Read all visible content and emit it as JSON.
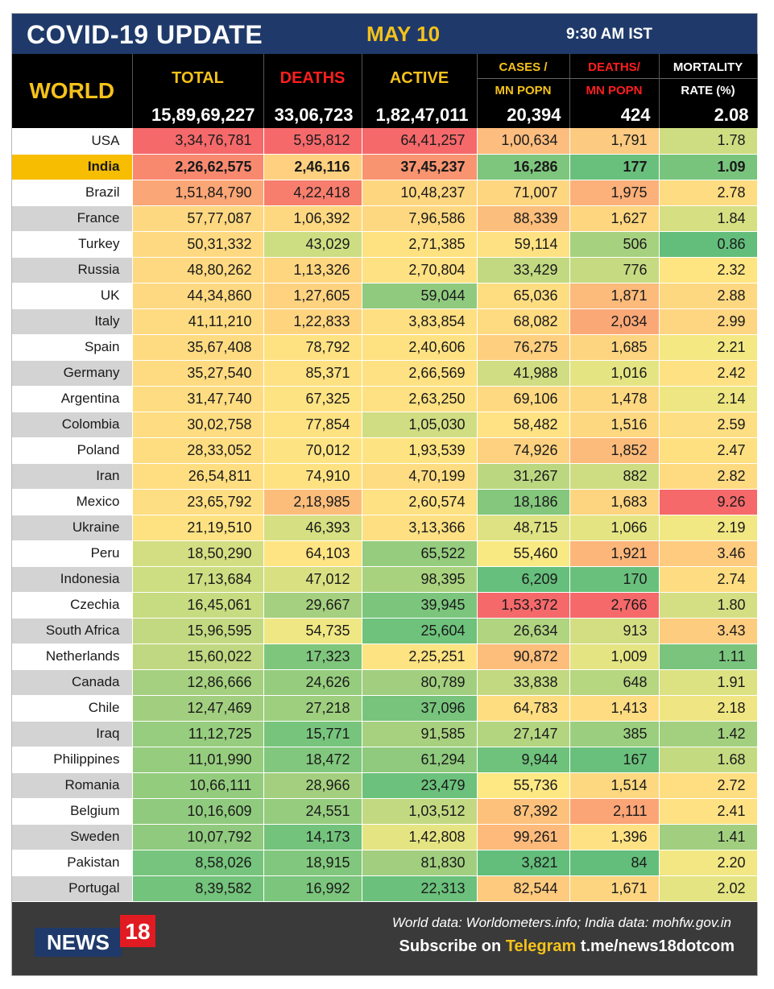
{
  "header": {
    "title": "COVID-19 UPDATE",
    "date": "MAY 10",
    "time": "9:30 AM IST"
  },
  "world": {
    "label": "WORLD",
    "columns": {
      "total": "TOTAL",
      "deaths": "DEATHS",
      "active": "ACTIVE",
      "cases_mn_1": "CASES /",
      "cases_mn_2": "MN POPN",
      "deaths_mn_1": "DEATHS/",
      "deaths_mn_2": "MN POPN",
      "mort_1": "MORTALITY",
      "mort_2": "RATE (%)"
    },
    "totals": {
      "total": "15,89,69,227",
      "deaths": "33,06,723",
      "active": "1,82,47,011",
      "cases_mn": "20,394",
      "deaths_mn": "424",
      "mortality": "2.08"
    }
  },
  "colors": {
    "red": "#f5696b",
    "orange": "#fbab78",
    "yellow": "#fde283",
    "lime": "#cedd82",
    "green": "#7cc57d",
    "dgreen": "#63be7b"
  },
  "rows": [
    {
      "country": "USA",
      "v": [
        "3,34,76,781",
        "5,95,812",
        "64,41,257",
        "1,00,634",
        "1,791",
        "1.78"
      ],
      "c": [
        "#f5696b",
        "#f5696b",
        "#f5696b",
        "#fdbd7e",
        "#fcca80",
        "#cfdd82"
      ]
    },
    {
      "country": "India",
      "v": [
        "2,26,62,575",
        "2,46,116",
        "37,45,237",
        "16,286",
        "177",
        "1.09"
      ],
      "c": [
        "#f8896f",
        "#fed07f",
        "#f99470",
        "#7ec67d",
        "#69c07c",
        "#79c47d"
      ],
      "hl": true
    },
    {
      "country": "Brazil",
      "v": [
        "1,51,84,790",
        "4,22,418",
        "10,48,237",
        "71,007",
        "1,975",
        "2.78"
      ],
      "c": [
        "#fba676",
        "#f77e6d",
        "#fed680",
        "#ffd680",
        "#fcb07a",
        "#fedc81"
      ]
    },
    {
      "country": "France",
      "v": [
        "57,77,087",
        "1,06,392",
        "7,96,586",
        "88,339",
        "1,627",
        "1.84"
      ],
      "c": [
        "#fed881",
        "#fed881",
        "#fed881",
        "#fcbe7c",
        "#fed680",
        "#d6df82"
      ]
    },
    {
      "country": "Turkey",
      "v": [
        "50,31,332",
        "43,029",
        "2,71,385",
        "59,114",
        "506",
        "0.86"
      ],
      "c": [
        "#fed981",
        "#cddd82",
        "#fee282",
        "#fee182",
        "#a6d17f",
        "#63be7b"
      ]
    },
    {
      "country": "Russia",
      "v": [
        "48,80,262",
        "1,13,326",
        "2,70,804",
        "33,429",
        "776",
        "2.32"
      ],
      "c": [
        "#fed981",
        "#fed67f",
        "#fee182",
        "#c2d981",
        "#c6da81",
        "#fee582"
      ]
    },
    {
      "country": "UK",
      "v": [
        "44,34,860",
        "1,27,605",
        "59,044",
        "65,036",
        "1,871",
        "2.88"
      ],
      "c": [
        "#fed981",
        "#fed27f",
        "#90ca7e",
        "#fedd81",
        "#fcba7b",
        "#fed881"
      ]
    },
    {
      "country": "Italy",
      "v": [
        "41,11,210",
        "1,22,833",
        "3,83,854",
        "68,082",
        "2,034",
        "2.99"
      ],
      "c": [
        "#feda81",
        "#fed47f",
        "#fedf81",
        "#fedb81",
        "#fba877",
        "#fed580"
      ]
    },
    {
      "country": "Spain",
      "v": [
        "35,67,408",
        "78,792",
        "2,40,606",
        "76,275",
        "1,685",
        "2.21"
      ],
      "c": [
        "#fedb81",
        "#fee282",
        "#fee282",
        "#fdcf7f",
        "#fdd47f",
        "#f4e883"
      ]
    },
    {
      "country": "Germany",
      "v": [
        "35,27,540",
        "85,371",
        "2,66,569",
        "41,988",
        "1,016",
        "2.42"
      ],
      "c": [
        "#fedb81",
        "#fee182",
        "#fee182",
        "#d0dd82",
        "#e4e483",
        "#fee182"
      ]
    },
    {
      "country": "Argentina",
      "v": [
        "31,47,740",
        "67,325",
        "2,63,250",
        "69,106",
        "1,478",
        "2.14"
      ],
      "c": [
        "#fedc81",
        "#fee383",
        "#fee182",
        "#fed981",
        "#fdd880",
        "#ede683"
      ]
    },
    {
      "country": "Colombia",
      "v": [
        "30,02,758",
        "77,854",
        "1,05,030",
        "58,482",
        "1,516",
        "2.59"
      ],
      "c": [
        "#fedc81",
        "#fee282",
        "#d0dd82",
        "#fee283",
        "#fdd880",
        "#fede82"
      ]
    },
    {
      "country": "Poland",
      "v": [
        "28,33,052",
        "70,012",
        "1,93,539",
        "74,926",
        "1,852",
        "2.47"
      ],
      "c": [
        "#fedd81",
        "#fee383",
        "#fee382",
        "#fdd17f",
        "#fcbb7b",
        "#fee081"
      ]
    },
    {
      "country": "Iran",
      "v": [
        "26,54,811",
        "74,910",
        "4,70,199",
        "31,267",
        "882",
        "2.82"
      ],
      "c": [
        "#fede81",
        "#fee282",
        "#fedc81",
        "#bbd780",
        "#cfdd82",
        "#feda81"
      ]
    },
    {
      "country": "Mexico",
      "v": [
        "23,65,792",
        "2,18,985",
        "2,60,574",
        "18,186",
        "1,683",
        "9.26"
      ],
      "c": [
        "#fede82",
        "#fcbd7b",
        "#fee182",
        "#84c77d",
        "#fdd47f",
        "#f5696b"
      ]
    },
    {
      "country": "Ukraine",
      "v": [
        "21,19,510",
        "46,393",
        "3,13,366",
        "48,715",
        "1,066",
        "2.19"
      ],
      "c": [
        "#fee282",
        "#d6df82",
        "#fee082",
        "#dee282",
        "#e4e483",
        "#f1e783"
      ]
    },
    {
      "country": "Peru",
      "v": [
        "18,50,290",
        "64,103",
        "65,522",
        "55,460",
        "1,921",
        "3.46"
      ],
      "c": [
        "#d3de82",
        "#fee482",
        "#95cc7e",
        "#f8e983",
        "#fcb67a",
        "#fecb7f"
      ]
    },
    {
      "country": "Indonesia",
      "v": [
        "17,13,684",
        "47,012",
        "98,395",
        "6,209",
        "170",
        "2.74"
      ],
      "c": [
        "#cddd82",
        "#d8e082",
        "#a9d27f",
        "#66bf7c",
        "#69c07c",
        "#fedc81"
      ]
    },
    {
      "country": "Czechia",
      "v": [
        "16,45,061",
        "29,667",
        "39,945",
        "1,53,372",
        "2,766",
        "1.80"
      ],
      "c": [
        "#c7db81",
        "#a5d07f",
        "#7cc57d",
        "#f5696b",
        "#f5696b",
        "#d4de82"
      ]
    },
    {
      "country": "South Africa",
      "v": [
        "15,96,595",
        "54,735",
        "25,604",
        "26,634",
        "913",
        "3.43"
      ],
      "c": [
        "#c3d981",
        "#efe783",
        "#6ec27c",
        "#b0d480",
        "#d3de82",
        "#fecc7f"
      ]
    },
    {
      "country": "Netherlands",
      "v": [
        "15,60,022",
        "17,323",
        "2,25,251",
        "90,872",
        "1,009",
        "1.11"
      ],
      "c": [
        "#c0d881",
        "#7fc67d",
        "#fee382",
        "#fdbe7b",
        "#e4e483",
        "#7ac47d"
      ]
    },
    {
      "country": "Canada",
      "v": [
        "12,86,666",
        "24,626",
        "80,789",
        "33,838",
        "648",
        "1.91"
      ],
      "c": [
        "#a5d07f",
        "#96cc7e",
        "#a1cf7f",
        "#c3d981",
        "#b6d680",
        "#dce182"
      ]
    },
    {
      "country": "Chile",
      "v": [
        "12,47,469",
        "27,218",
        "37,096",
        "64,783",
        "1,413",
        "2.18"
      ],
      "c": [
        "#a2cf7f",
        "#9ecf7f",
        "#78c47d",
        "#fedd81",
        "#fedc81",
        "#efe683"
      ]
    },
    {
      "country": "Iraq",
      "v": [
        "11,12,725",
        "15,771",
        "91,585",
        "27,147",
        "385",
        "1.42"
      ],
      "c": [
        "#97cd7e",
        "#77c47d",
        "#a7d17f",
        "#b3d580",
        "#9bce7e",
        "#a3d07f"
      ]
    },
    {
      "country": "Philippines",
      "v": [
        "11,01,990",
        "18,472",
        "61,294",
        "9,944",
        "167",
        "1.68"
      ],
      "c": [
        "#96cc7e",
        "#81c77d",
        "#8fca7e",
        "#6fc27c",
        "#69c07c",
        "#c4da81"
      ]
    },
    {
      "country": "Romania",
      "v": [
        "10,66,111",
        "28,966",
        "23,479",
        "55,736",
        "1,514",
        "2.72"
      ],
      "c": [
        "#94cc7e",
        "#a3cf7f",
        "#6cc17c",
        "#fde883",
        "#fdd880",
        "#fede81"
      ]
    },
    {
      "country": "Belgium",
      "v": [
        "10,16,609",
        "24,551",
        "1,03,512",
        "87,392",
        "2,111",
        "2.41"
      ],
      "c": [
        "#90ca7e",
        "#96cc7e",
        "#c2d981",
        "#fdc17c",
        "#fba476",
        "#fee182"
      ]
    },
    {
      "country": "Sweden",
      "v": [
        "10,07,792",
        "14,173",
        "1,42,808",
        "99,261",
        "1,396",
        "1.41"
      ],
      "c": [
        "#8fca7e",
        "#73c37c",
        "#e5e483",
        "#fdba7b",
        "#fee182",
        "#a2cf7f"
      ]
    },
    {
      "country": "Pakistan",
      "v": [
        "8,58,026",
        "18,915",
        "81,830",
        "3,821",
        "84",
        "2.20"
      ],
      "c": [
        "#76c47d",
        "#81c77d",
        "#a1cf7f",
        "#63be7b",
        "#63be7b",
        "#f2e783"
      ]
    },
    {
      "country": "Portugal",
      "v": [
        "8,39,582",
        "16,992",
        "22,313",
        "82,544",
        "1,671",
        "2.02"
      ],
      "c": [
        "#74c37c",
        "#7bc57d",
        "#6bc17c",
        "#fdca7e",
        "#fdd580",
        "#e4e483"
      ]
    }
  ],
  "footer": {
    "logo_news": "NEWS",
    "logo_num": "18",
    "source": "World data: Worldometers.info; India data: mohfw.gov.in",
    "subscribe_prefix": "Subscribe on",
    "subscribe_platform": "Telegram",
    "subscribe_link": "t.me/news18dotcom"
  }
}
